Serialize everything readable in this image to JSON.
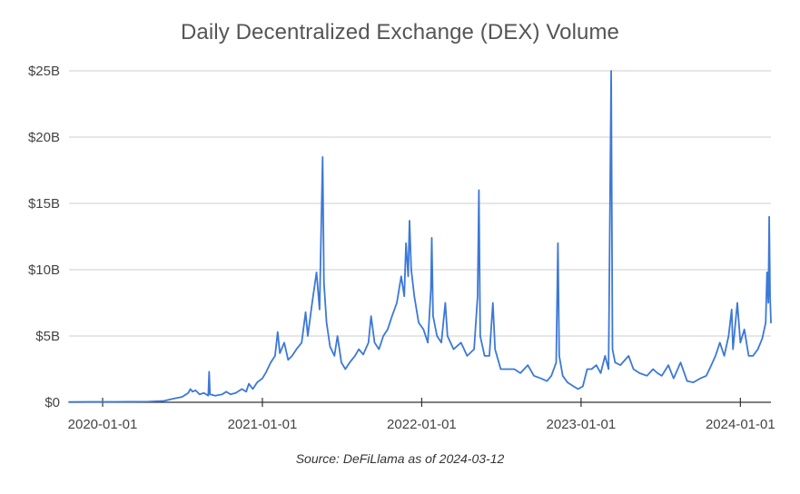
{
  "chart_data": {
    "type": "line",
    "title": "Daily Decentralized Exchange (DEX) Volume",
    "source": "Source: DeFiLlama as of 2024-03-12",
    "xlabel": "",
    "ylabel": "",
    "x_range": [
      "2019-10-16",
      "2024-03-11"
    ],
    "ylim": [
      0,
      25
    ],
    "y_unit": "billion USD",
    "y_ticks": [
      {
        "value": 0,
        "label": "$0"
      },
      {
        "value": 5,
        "label": "$5B"
      },
      {
        "value": 10,
        "label": "$10B"
      },
      {
        "value": 15,
        "label": "$15B"
      },
      {
        "value": 20,
        "label": "$20B"
      },
      {
        "value": 25,
        "label": "$25B"
      }
    ],
    "x_ticks": [
      {
        "date": "2020-01-01",
        "label": "2020-01-01"
      },
      {
        "date": "2021-01-01",
        "label": "2021-01-01"
      },
      {
        "date": "2022-01-01",
        "label": "2022-01-01"
      },
      {
        "date": "2023-01-01",
        "label": "2023-01-01"
      },
      {
        "date": "2024-01-01",
        "label": "2024-01-01"
      }
    ],
    "grid": true,
    "legend": "none",
    "line_color": "#3c78d8",
    "series": [
      {
        "points": [
          [
            "2019-10-16",
            0.02
          ],
          [
            "2019-12-01",
            0.03
          ],
          [
            "2020-01-15",
            0.03
          ],
          [
            "2020-03-01",
            0.04
          ],
          [
            "2020-04-15",
            0.05
          ],
          [
            "2020-05-20",
            0.1
          ],
          [
            "2020-06-15",
            0.3
          ],
          [
            "2020-07-01",
            0.4
          ],
          [
            "2020-07-15",
            0.7
          ],
          [
            "2020-07-20",
            1.0
          ],
          [
            "2020-07-25",
            0.8
          ],
          [
            "2020-08-01",
            0.9
          ],
          [
            "2020-08-10",
            0.6
          ],
          [
            "2020-08-20",
            0.7
          ],
          [
            "2020-08-30",
            0.5
          ],
          [
            "2020-09-01",
            2.3
          ],
          [
            "2020-09-03",
            0.6
          ],
          [
            "2020-09-15",
            0.5
          ],
          [
            "2020-10-01",
            0.6
          ],
          [
            "2020-10-10",
            0.8
          ],
          [
            "2020-10-20",
            0.6
          ],
          [
            "2020-11-01",
            0.7
          ],
          [
            "2020-11-15",
            1.0
          ],
          [
            "2020-11-25",
            0.8
          ],
          [
            "2020-12-01",
            1.4
          ],
          [
            "2020-12-10",
            1.0
          ],
          [
            "2020-12-20",
            1.5
          ],
          [
            "2021-01-01",
            1.8
          ],
          [
            "2021-01-10",
            2.3
          ],
          [
            "2021-01-20",
            3.0
          ],
          [
            "2021-01-30",
            3.5
          ],
          [
            "2021-02-05",
            5.3
          ],
          [
            "2021-02-10",
            3.7
          ],
          [
            "2021-02-20",
            4.5
          ],
          [
            "2021-03-01",
            3.2
          ],
          [
            "2021-03-10",
            3.5
          ],
          [
            "2021-03-20",
            4.0
          ],
          [
            "2021-04-01",
            4.5
          ],
          [
            "2021-04-10",
            6.8
          ],
          [
            "2021-04-15",
            5.0
          ],
          [
            "2021-04-25",
            7.5
          ],
          [
            "2021-05-05",
            9.8
          ],
          [
            "2021-05-12",
            7.0
          ],
          [
            "2021-05-19",
            18.5
          ],
          [
            "2021-05-22",
            9.0
          ],
          [
            "2021-05-28",
            6.0
          ],
          [
            "2021-06-05",
            4.2
          ],
          [
            "2021-06-15",
            3.5
          ],
          [
            "2021-06-22",
            5.0
          ],
          [
            "2021-07-01",
            3.0
          ],
          [
            "2021-07-10",
            2.5
          ],
          [
            "2021-07-20",
            3.0
          ],
          [
            "2021-08-01",
            3.5
          ],
          [
            "2021-08-10",
            4.0
          ],
          [
            "2021-08-20",
            3.6
          ],
          [
            "2021-09-01",
            4.5
          ],
          [
            "2021-09-07",
            6.5
          ],
          [
            "2021-09-15",
            4.5
          ],
          [
            "2021-09-25",
            4.0
          ],
          [
            "2021-10-05",
            5.0
          ],
          [
            "2021-10-15",
            5.5
          ],
          [
            "2021-10-25",
            6.5
          ],
          [
            "2021-11-05",
            7.5
          ],
          [
            "2021-11-15",
            9.5
          ],
          [
            "2021-11-22",
            8.0
          ],
          [
            "2021-11-26",
            12.0
          ],
          [
            "2021-12-01",
            9.5
          ],
          [
            "2021-12-04",
            13.7
          ],
          [
            "2021-12-08",
            10.0
          ],
          [
            "2021-12-15",
            8.0
          ],
          [
            "2021-12-25",
            6.0
          ],
          [
            "2022-01-05",
            5.5
          ],
          [
            "2022-01-15",
            4.5
          ],
          [
            "2022-01-22",
            8.5
          ],
          [
            "2022-01-24",
            12.4
          ],
          [
            "2022-01-27",
            6.5
          ],
          [
            "2022-02-05",
            5.0
          ],
          [
            "2022-02-15",
            4.5
          ],
          [
            "2022-02-24",
            7.5
          ],
          [
            "2022-03-01",
            5.0
          ],
          [
            "2022-03-15",
            4.0
          ],
          [
            "2022-04-01",
            4.5
          ],
          [
            "2022-04-15",
            3.5
          ],
          [
            "2022-05-01",
            4.0
          ],
          [
            "2022-05-09",
            8.0
          ],
          [
            "2022-05-12",
            16.0
          ],
          [
            "2022-05-15",
            5.0
          ],
          [
            "2022-05-25",
            3.5
          ],
          [
            "2022-06-05",
            3.5
          ],
          [
            "2022-06-13",
            7.5
          ],
          [
            "2022-06-18",
            4.0
          ],
          [
            "2022-07-01",
            2.5
          ],
          [
            "2022-07-15",
            2.5
          ],
          [
            "2022-08-01",
            2.5
          ],
          [
            "2022-08-15",
            2.2
          ],
          [
            "2022-09-01",
            2.8
          ],
          [
            "2022-09-15",
            2.0
          ],
          [
            "2022-10-01",
            1.8
          ],
          [
            "2022-10-15",
            1.6
          ],
          [
            "2022-10-25",
            2.0
          ],
          [
            "2022-11-05",
            3.0
          ],
          [
            "2022-11-09",
            12.0
          ],
          [
            "2022-11-12",
            3.5
          ],
          [
            "2022-11-20",
            2.0
          ],
          [
            "2022-12-01",
            1.5
          ],
          [
            "2022-12-15",
            1.2
          ],
          [
            "2022-12-25",
            1.0
          ],
          [
            "2023-01-05",
            1.2
          ],
          [
            "2023-01-15",
            2.5
          ],
          [
            "2023-01-25",
            2.5
          ],
          [
            "2023-02-05",
            2.8
          ],
          [
            "2023-02-15",
            2.2
          ],
          [
            "2023-02-25",
            3.5
          ],
          [
            "2023-03-05",
            2.5
          ],
          [
            "2023-03-11",
            25.0
          ],
          [
            "2023-03-14",
            4.0
          ],
          [
            "2023-03-20",
            3.0
          ],
          [
            "2023-04-01",
            2.8
          ],
          [
            "2023-04-20",
            3.5
          ],
          [
            "2023-05-01",
            2.5
          ],
          [
            "2023-05-15",
            2.2
          ],
          [
            "2023-06-01",
            2.0
          ],
          [
            "2023-06-15",
            2.5
          ],
          [
            "2023-06-25",
            2.2
          ],
          [
            "2023-07-05",
            2.0
          ],
          [
            "2023-07-20",
            2.8
          ],
          [
            "2023-08-01",
            1.8
          ],
          [
            "2023-08-17",
            3.0
          ],
          [
            "2023-09-01",
            1.6
          ],
          [
            "2023-09-15",
            1.5
          ],
          [
            "2023-10-01",
            1.8
          ],
          [
            "2023-10-15",
            2.0
          ],
          [
            "2023-10-25",
            2.7
          ],
          [
            "2023-11-05",
            3.5
          ],
          [
            "2023-11-15",
            4.5
          ],
          [
            "2023-11-25",
            3.5
          ],
          [
            "2023-12-05",
            5.0
          ],
          [
            "2023-12-12",
            7.0
          ],
          [
            "2023-12-15",
            4.0
          ],
          [
            "2023-12-25",
            7.5
          ],
          [
            "2024-01-01",
            4.5
          ],
          [
            "2024-01-10",
            5.5
          ],
          [
            "2024-01-20",
            3.5
          ],
          [
            "2024-01-30",
            3.5
          ],
          [
            "2024-02-10",
            4.0
          ],
          [
            "2024-02-20",
            4.8
          ],
          [
            "2024-02-28",
            6.0
          ],
          [
            "2024-03-02",
            9.8
          ],
          [
            "2024-03-05",
            7.5
          ],
          [
            "2024-03-07",
            14.0
          ],
          [
            "2024-03-09",
            8.0
          ],
          [
            "2024-03-11",
            6.0
          ]
        ]
      }
    ]
  }
}
